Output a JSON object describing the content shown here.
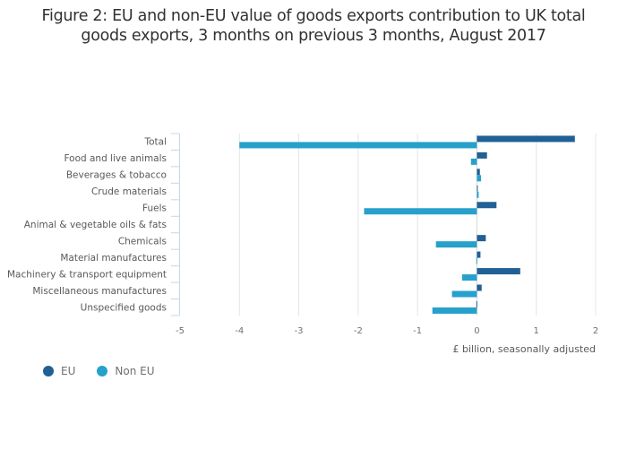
{
  "chart_data": {
    "type": "bar",
    "orientation": "horizontal",
    "title_lines": [
      "Figure 2: EU and non-EU value of goods exports contribution to UK total",
      "goods exports, 3 months on previous 3 months, August 2017"
    ],
    "categories": [
      "Total",
      "Food and live animals",
      "Beverages & tobacco",
      "Crude materials",
      "Fuels",
      "Animal & vegetable oils & fats",
      "Chemicals",
      "Material manufactures",
      "Machinery & transport equipment",
      "Miscellaneous manufactures",
      "Unspecified goods"
    ],
    "series": [
      {
        "name": "EU",
        "color": "#206095",
        "values": [
          1.65,
          0.17,
          0.05,
          0.01,
          0.33,
          0.0,
          0.15,
          0.06,
          0.73,
          0.08,
          -0.01
        ]
      },
      {
        "name": "Non EU",
        "color": "#27a0cc",
        "values": [
          -4.0,
          -0.1,
          0.07,
          0.03,
          -1.9,
          0.0,
          -0.69,
          -0.01,
          -0.25,
          -0.42,
          -0.75
        ]
      }
    ],
    "xlabel": "£ billion, seasonally adjusted",
    "ylabel": "",
    "xlim": [
      -5,
      2
    ],
    "xticks": [
      -5,
      -4,
      -3,
      -2,
      -1,
      0,
      1,
      2
    ],
    "grid": true,
    "legend_position": "bottom-left"
  },
  "legend": [
    {
      "label": "EU",
      "color": "#206095"
    },
    {
      "label": "Non EU",
      "color": "#27a0cc"
    }
  ]
}
